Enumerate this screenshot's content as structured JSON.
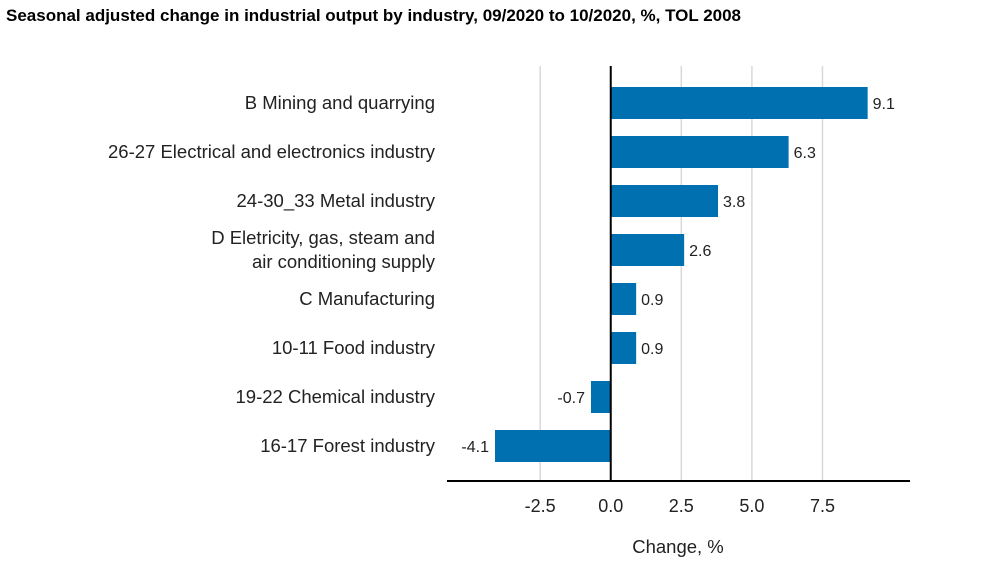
{
  "chart_data": {
    "type": "bar",
    "orientation": "horizontal",
    "title": "Seasonal adjusted change in industrial output by industry, 09/2020 to 10/2020, %, TOL 2008",
    "xlabel": "Change, %",
    "ylabel": "",
    "categories": [
      [
        "B Mining and quarrying"
      ],
      [
        "26-27 Electrical and electronics industry"
      ],
      [
        "24-30_33 Metal industry"
      ],
      [
        "D Eletricity, gas, steam and",
        "air conditioning supply"
      ],
      [
        "C Manufacturing"
      ],
      [
        "10-11 Food industry"
      ],
      [
        "19-22 Chemical industry"
      ],
      [
        "16-17 Forest industry"
      ]
    ],
    "values": [
      9.1,
      6.3,
      3.8,
      2.6,
      0.9,
      0.9,
      -0.7,
      -4.1
    ],
    "data_labels": [
      "9.1",
      "6.3",
      "3.8",
      "2.6",
      "0.9",
      "0.9",
      "-0.7",
      "-4.1"
    ],
    "xlim": [
      -5.8,
      10.6
    ],
    "xticks": [
      -2.5,
      0,
      2.5,
      5,
      7.5
    ],
    "xtick_labels": [
      "-2.5",
      "0.0",
      "2.5",
      "5.0",
      "7.5"
    ],
    "grid": "vertical",
    "legend": "none",
    "bar_color": "#0070b0"
  }
}
